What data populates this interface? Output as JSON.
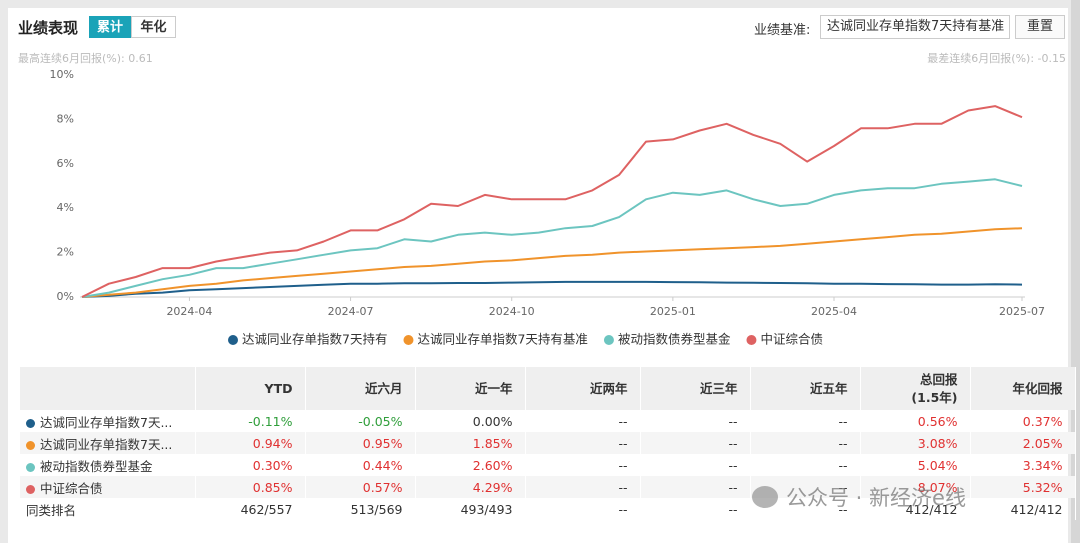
{
  "header": {
    "title": "业绩表现",
    "tabs": [
      "累计",
      "年化"
    ],
    "benchmark_label": "业绩基准:",
    "benchmark_value": "达诚同业存单指数7天持有基准",
    "reset": "重置"
  },
  "stats": {
    "best": "最高连续6月回报(%): 0.61",
    "worst": "最差连续6月回报(%): -0.15"
  },
  "chart_data": {
    "type": "line",
    "categories": [
      null,
      null,
      null,
      null,
      "2024-04",
      null,
      null,
      null,
      null,
      null,
      "2024-07",
      null,
      null,
      null,
      null,
      null,
      "2024-10",
      null,
      null,
      null,
      null,
      null,
      "2025-01",
      null,
      null,
      null,
      null,
      null,
      "2025-04",
      null,
      null,
      null,
      null,
      null,
      null,
      "2025-07"
    ],
    "series": [
      {
        "name": "达诚同业存单指数7天持有",
        "color": "#1f5f8b",
        "values": [
          0,
          0.05,
          0.15,
          0.2,
          0.3,
          0.35,
          0.4,
          0.45,
          0.5,
          0.55,
          0.6,
          0.6,
          0.62,
          0.62,
          0.63,
          0.63,
          0.65,
          0.66,
          0.68,
          0.68,
          0.68,
          0.68,
          0.67,
          0.66,
          0.65,
          0.64,
          0.63,
          0.62,
          0.6,
          0.6,
          0.58,
          0.57,
          0.56,
          0.56,
          0.57,
          0.56
        ]
      },
      {
        "name": "达诚同业存单指数7天持有基准",
        "color": "#f0932b",
        "values": [
          0,
          0.1,
          0.2,
          0.35,
          0.5,
          0.6,
          0.75,
          0.85,
          0.95,
          1.05,
          1.15,
          1.25,
          1.35,
          1.4,
          1.5,
          1.6,
          1.65,
          1.75,
          1.85,
          1.9,
          2.0,
          2.05,
          2.1,
          2.15,
          2.2,
          2.25,
          2.3,
          2.4,
          2.5,
          2.6,
          2.7,
          2.8,
          2.85,
          2.95,
          3.05,
          3.1
        ]
      },
      {
        "name": "被动指数债券型基金",
        "color": "#6cc5c0",
        "values": [
          0,
          0.2,
          0.5,
          0.8,
          1.0,
          1.3,
          1.3,
          1.5,
          1.7,
          1.9,
          2.1,
          2.2,
          2.6,
          2.5,
          2.8,
          2.9,
          2.8,
          2.9,
          3.1,
          3.2,
          3.6,
          4.4,
          4.7,
          4.6,
          4.8,
          4.4,
          4.1,
          4.2,
          4.6,
          4.8,
          4.9,
          4.9,
          5.1,
          5.2,
          5.3,
          5.0
        ]
      },
      {
        "name": "中证综合债",
        "color": "#de6262",
        "values": [
          0,
          0.6,
          0.9,
          1.3,
          1.3,
          1.6,
          1.8,
          2.0,
          2.1,
          2.5,
          3.0,
          3.0,
          3.5,
          4.2,
          4.1,
          4.6,
          4.4,
          4.4,
          4.4,
          4.8,
          5.5,
          7.0,
          7.1,
          7.5,
          7.8,
          7.3,
          6.9,
          6.1,
          6.8,
          7.6,
          7.6,
          7.8,
          7.8,
          8.4,
          8.6,
          8.1
        ]
      }
    ],
    "ylim": [
      0,
      10
    ],
    "yticks": [
      {
        "value": 0,
        "label": "0%"
      },
      {
        "value": 2,
        "label": "2%"
      },
      {
        "value": 4,
        "label": "4%"
      },
      {
        "value": 6,
        "label": "6%"
      },
      {
        "value": 8,
        "label": "8%"
      },
      {
        "value": 10,
        "label": "10%"
      }
    ],
    "grid": false,
    "legend": "bottom"
  },
  "table": {
    "headers": [
      "YTD",
      "近六月",
      "近一年",
      "近两年",
      "近三年",
      "近五年",
      [
        "总回报",
        "(1.5年)"
      ],
      "年化回报"
    ],
    "rows": [
      {
        "name": "达诚同业存单指数7天...",
        "values": [
          "-0.11%",
          "-0.05%",
          "0.00%",
          "--",
          "--",
          "--",
          "0.56%",
          "0.37%"
        ]
      },
      {
        "name": "达诚同业存单指数7天...",
        "values": [
          "0.94%",
          "0.95%",
          "1.85%",
          "--",
          "--",
          "--",
          "3.08%",
          "2.05%"
        ]
      },
      {
        "name": "被动指数债券型基金",
        "values": [
          "0.30%",
          "0.44%",
          "2.60%",
          "--",
          "--",
          "--",
          "5.04%",
          "3.34%"
        ]
      },
      {
        "name": "中证综合债",
        "values": [
          "0.85%",
          "0.57%",
          "4.29%",
          "--",
          "--",
          "--",
          "8.07%",
          "5.32%"
        ]
      },
      {
        "name": "同类排名",
        "values": [
          "462/557",
          "513/569",
          "493/493",
          "--",
          "--",
          "--",
          "412/412",
          "412/412"
        ]
      }
    ]
  },
  "watermark": "公众号 · 新经济e线"
}
